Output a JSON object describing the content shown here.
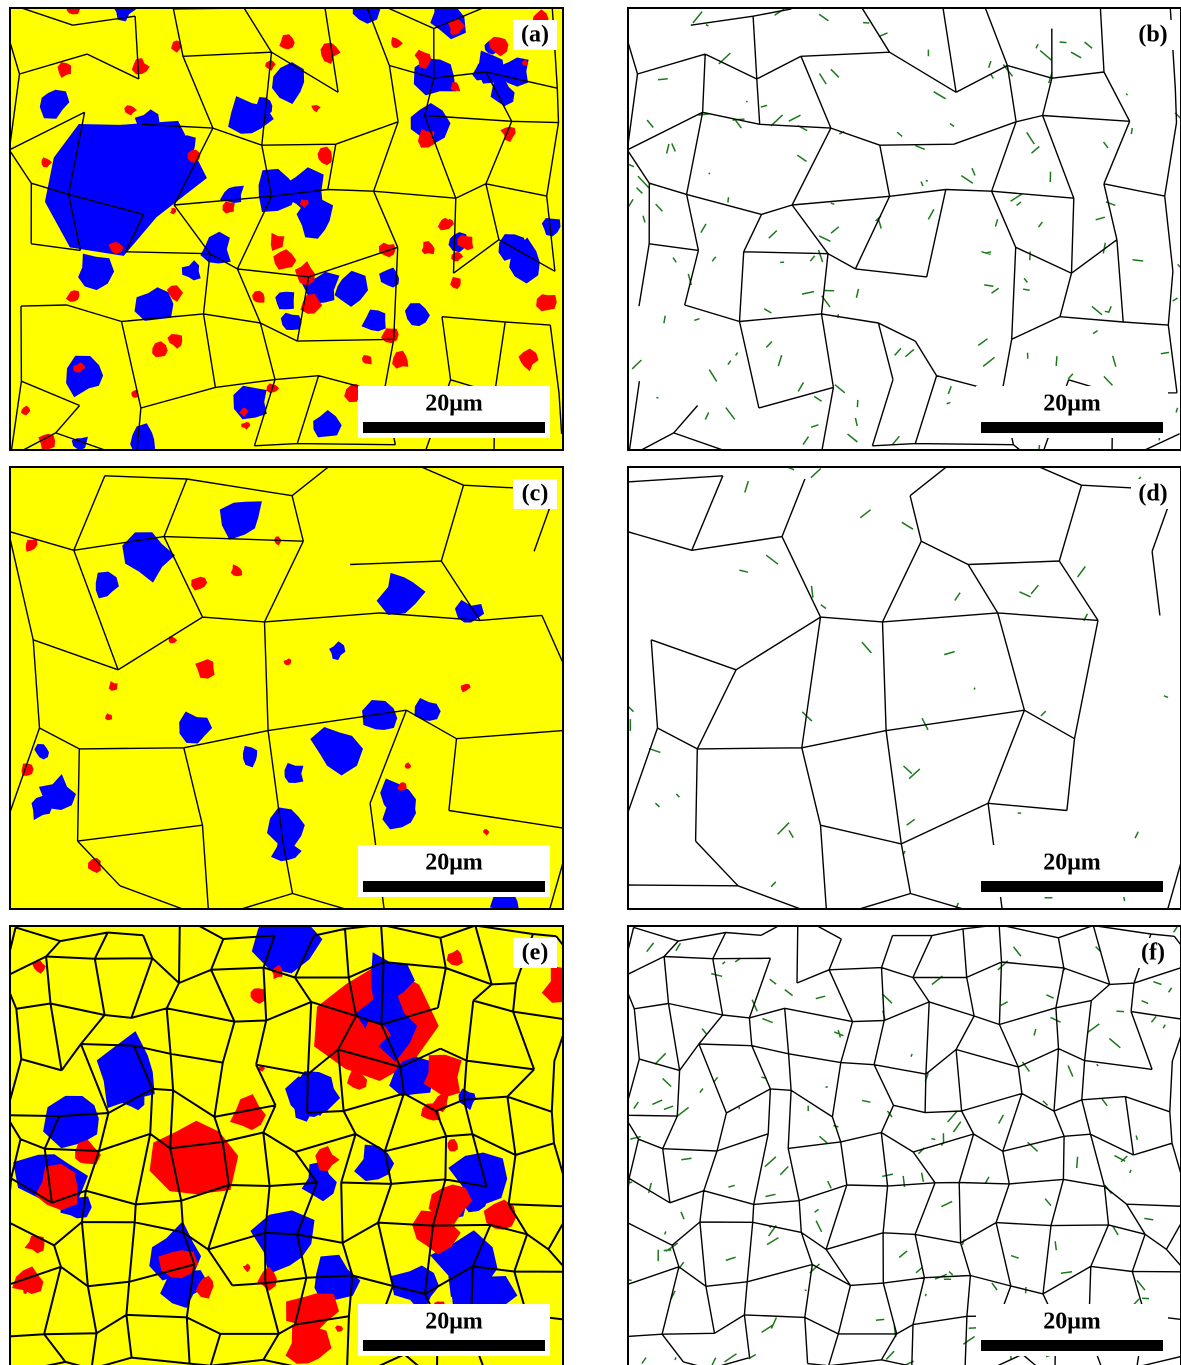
{
  "panels": [
    {
      "label": "(a)",
      "scale": "20μm"
    },
    {
      "label": "(b)",
      "scale": "20μm"
    },
    {
      "label": "(c)",
      "scale": "20μm"
    },
    {
      "label": "(d)",
      "scale": "20μm"
    },
    {
      "label": "(e)",
      "scale": "20μm"
    },
    {
      "label": "(f)",
      "scale": "20μm"
    }
  ]
}
